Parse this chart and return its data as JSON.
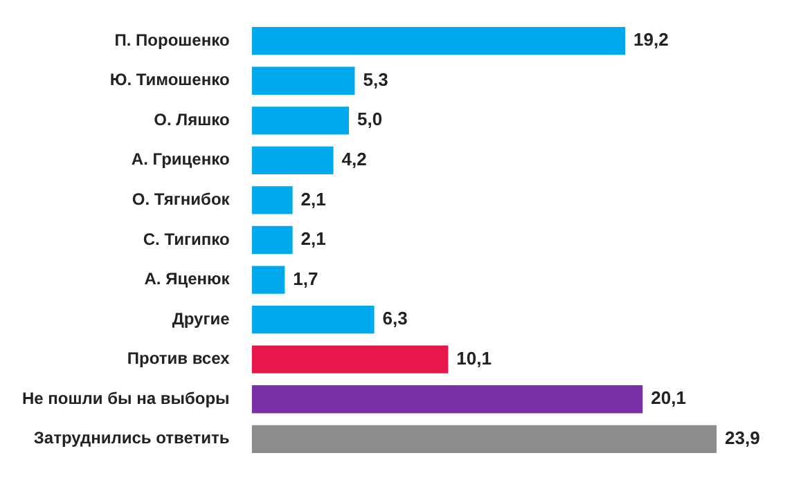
{
  "chart_data": {
    "type": "bar",
    "orientation": "horizontal",
    "categories": [
      "П. Порошенко",
      "Ю. Тимошенко",
      "О. Ляшко",
      "А. Гриценко",
      "О. Тягнибок",
      "С. Тигипко",
      "А. Яценюк",
      "Другие",
      "Против всех",
      "Не пошли бы на выборы",
      "Затруднились ответить"
    ],
    "values": [
      19.2,
      5.3,
      5.0,
      4.2,
      2.1,
      2.1,
      1.7,
      6.3,
      10.1,
      20.1,
      23.9
    ],
    "colors": [
      "#00a8ec",
      "#00a8ec",
      "#00a8ec",
      "#00a8ec",
      "#00a8ec",
      "#00a8ec",
      "#00a8ec",
      "#00a8ec",
      "#e8174b",
      "#7a2fa8",
      "#8c8c8c"
    ],
    "value_labels": [
      "19,2",
      "5,3",
      "5,0",
      "4,2",
      "2,1",
      "2,1",
      "1,7",
      "6,3",
      "10,1",
      "20,1",
      "23,9"
    ],
    "tick_labels": "y"
  }
}
